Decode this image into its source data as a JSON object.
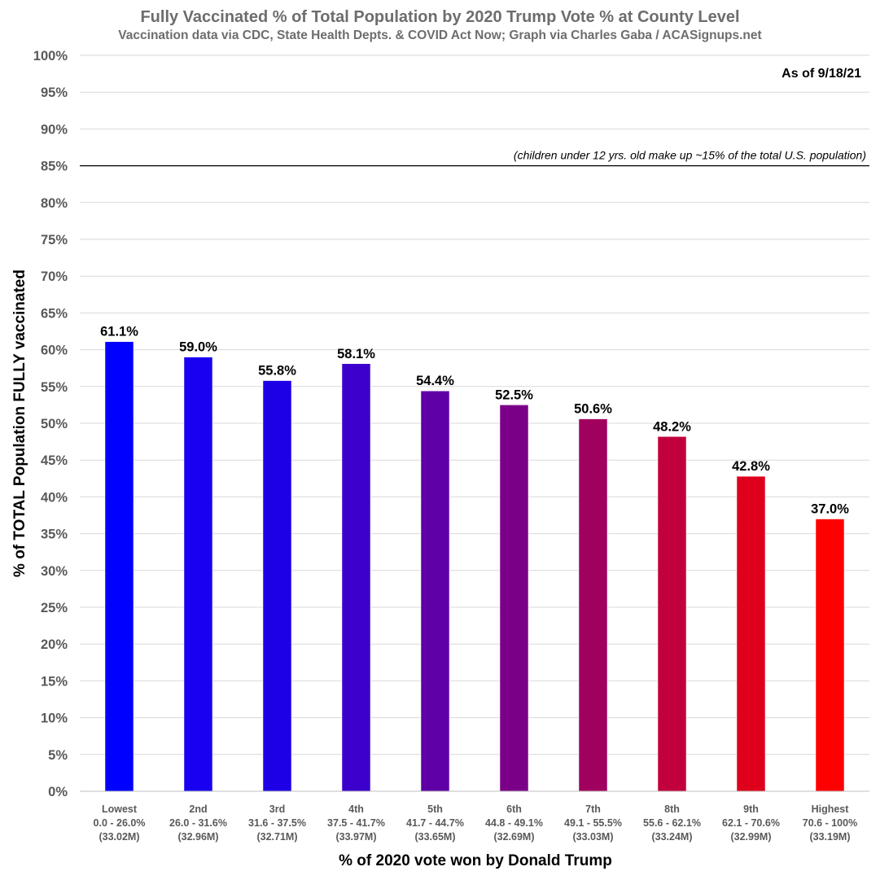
{
  "chart_data": {
    "type": "bar",
    "title": "Fully Vaccinated % of Total Population by 2020 Trump Vote % at County Level",
    "subtitle": "Vaccination data via CDC, State Health Depts. & COVID Act Now; Graph via Charles Gaba / ACASignups.net",
    "date_note": "As of 9/18/21",
    "reference_line": {
      "y": 85,
      "label": "(children under 12 yrs. old make up ~15% of the total U.S. population)"
    },
    "xlabel": "% of 2020 vote won by Donald Trump",
    "ylabel": "% of TOTAL Population FULLY vaccinated",
    "ylim": [
      0,
      100
    ],
    "y_tick_step": 5,
    "y_tick_suffix": "%",
    "grid": true,
    "categories": [
      {
        "label": "Lowest",
        "range": "0.0 - 26.0%",
        "pop": "(33.02M)"
      },
      {
        "label": "2nd",
        "range": "26.0 - 31.6%",
        "pop": "(32.96M)"
      },
      {
        "label": "3rd",
        "range": "31.6 - 37.5%",
        "pop": "(32.71M)"
      },
      {
        "label": "4th",
        "range": "37.5 - 41.7%",
        "pop": "(33.97M)"
      },
      {
        "label": "5th",
        "range": "41.7 - 44.7%",
        "pop": "(33.65M)"
      },
      {
        "label": "6th",
        "range": "44.8 - 49.1%",
        "pop": "(32.69M)"
      },
      {
        "label": "7th",
        "range": "49.1 - 55.5%",
        "pop": "(33.03M)"
      },
      {
        "label": "8th",
        "range": "55.6 - 62.1%",
        "pop": "(33.24M)"
      },
      {
        "label": "9th",
        "range": "62.1 - 70.6%",
        "pop": "(32.99M)"
      },
      {
        "label": "Highest",
        "range": "70.6 - 100%",
        "pop": "(33.19M)"
      }
    ],
    "values": [
      61.1,
      59.0,
      55.8,
      58.1,
      54.4,
      52.5,
      50.6,
      48.2,
      42.8,
      37.0
    ],
    "value_labels": [
      "61.1%",
      "59.0%",
      "55.8%",
      "58.1%",
      "54.4%",
      "52.5%",
      "50.6%",
      "48.2%",
      "42.8%",
      "37.0%"
    ],
    "colors": [
      "#0000ff",
      "#1900f0",
      "#1d00e6",
      "#3c00cc",
      "#5e00a6",
      "#7a0088",
      "#a0005e",
      "#c2003e",
      "#df001c",
      "#ff0000"
    ]
  }
}
